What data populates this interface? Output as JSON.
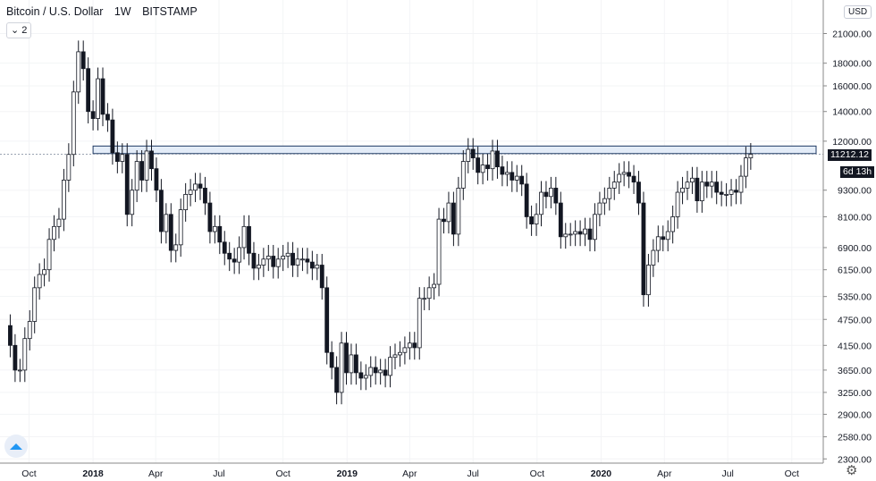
{
  "header": {
    "symbol": "Bitcoin / U.S. Dollar",
    "interval": "1W",
    "exchange": "BITSTAMP",
    "collapse_label": "2"
  },
  "currency_button": "USD",
  "price_tag": {
    "value": "11212.12",
    "countdown": "6d 13h"
  },
  "chart_data": {
    "type": "candlestick",
    "y_scale": "log",
    "ylim": [
      2250,
      25000
    ],
    "yticks": [
      "2300.00",
      "2580.00",
      "2900.00",
      "3250.00",
      "3650.00",
      "4150.00",
      "4750.00",
      "5350.00",
      "6150.00",
      "6900.00",
      "8100.00",
      "9300.00",
      "12000.00",
      "14000.00",
      "16000.00",
      "18000.00",
      "21000.00"
    ],
    "xticks": [
      "Oct",
      "2018",
      "Apr",
      "Jul",
      "Oct",
      "2019",
      "Apr",
      "Jul",
      "Oct",
      "2020",
      "Apr",
      "Jul",
      "Oct"
    ],
    "first_week": "2017-08-28",
    "resistance_zone": {
      "low": 11250,
      "high": 11700
    },
    "current_price": 11212.12,
    "closes": [
      4600,
      4150,
      3650,
      3650,
      4300,
      4700,
      5600,
      6000,
      6150,
      7200,
      7700,
      8000,
      9800,
      11200,
      15500,
      19100,
      17500,
      14000,
      13500,
      16600,
      13800,
      13400,
      11300,
      10800,
      11200,
      8200,
      9300,
      10800,
      9800,
      11400,
      10400,
      9300,
      7500,
      8200,
      6800,
      7000,
      8400,
      9100,
      9300,
      9600,
      9400,
      8700,
      7500,
      7700,
      7100,
      6700,
      6500,
      6400,
      6900,
      7700,
      6700,
      6200,
      6300,
      6500,
      6600,
      6250,
      6500,
      6600,
      6700,
      6300,
      6500,
      6500,
      6400,
      6200,
      6300,
      5600,
      4000,
      3700,
      3250,
      4200,
      3600,
      3950,
      3600,
      3500,
      3550,
      3700,
      3600,
      3650,
      3550,
      3900,
      3950,
      4000,
      4100,
      4200,
      4100,
      5300,
      5300,
      5600,
      5700,
      8000,
      7900,
      8700,
      7400,
      9400,
      10800,
      11500,
      11000,
      10200,
      10600,
      10400,
      11400,
      10500,
      10100,
      10200,
      9800,
      10000,
      9600,
      8100,
      7800,
      8200,
      9200,
      9000,
      9400,
      8700,
      7300,
      7400,
      7400,
      7500,
      7400,
      7600,
      7200,
      8200,
      8700,
      8900,
      9400,
      9700,
      10100,
      10200,
      10000,
      9700,
      8700,
      5400,
      6300,
      6800,
      7300,
      7200,
      7500,
      8100,
      9200,
      9400,
      9700,
      9900,
      8800,
      9700,
      9500,
      9700,
      9200,
      9100,
      9100,
      9300,
      9200,
      10000,
      11000,
      11212
    ]
  }
}
